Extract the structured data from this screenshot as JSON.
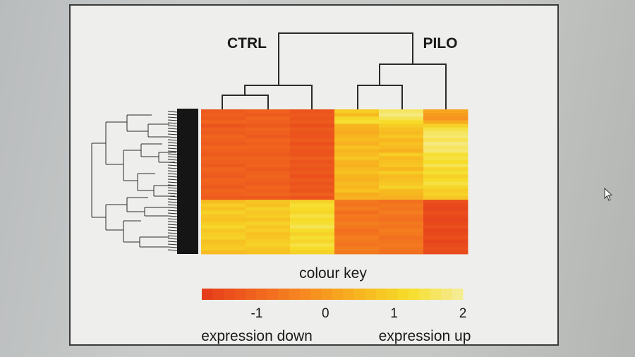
{
  "chart_data": {
    "type": "heatmap",
    "column_groups": [
      {
        "label": "CTRL",
        "columns": 3
      },
      {
        "label": "PILO",
        "columns": 3
      }
    ],
    "columns": 6,
    "rows": 40,
    "color_scale": [
      "#e43a1a",
      "#f0621e",
      "#f68a20",
      "#f7b51f",
      "#f6de2a",
      "#f5ed9c"
    ],
    "value_range": [
      -1.8,
      2
    ],
    "values": [
      [
        -1.2,
        -1.1,
        -1.3,
        0.9,
        1.6,
        0.2
      ],
      [
        -1.1,
        -1.2,
        -1.2,
        0.6,
        1.8,
        0.0
      ],
      [
        -1.2,
        -1.0,
        -1.3,
        1.1,
        1.5,
        -0.1
      ],
      [
        -1.0,
        -1.1,
        -1.2,
        1.3,
        1.2,
        0.3
      ],
      [
        -1.3,
        -1.2,
        -1.4,
        0.5,
        0.9,
        1.0
      ],
      [
        -1.1,
        -1.0,
        -1.2,
        0.4,
        0.7,
        1.4
      ],
      [
        -1.2,
        -1.1,
        -1.3,
        0.3,
        0.6,
        1.6
      ],
      [
        -1.0,
        -1.2,
        -1.3,
        0.5,
        0.8,
        1.7
      ],
      [
        -1.1,
        -1.0,
        -1.2,
        0.6,
        0.5,
        1.5
      ],
      [
        -1.2,
        -1.1,
        -1.4,
        0.4,
        0.7,
        1.8
      ],
      [
        -1.0,
        -1.0,
        -1.2,
        0.7,
        0.6,
        1.6
      ],
      [
        -1.1,
        -1.1,
        -1.3,
        0.5,
        0.4,
        1.7
      ],
      [
        -1.2,
        -1.2,
        -1.3,
        0.6,
        0.9,
        1.3
      ],
      [
        -1.0,
        -1.0,
        -1.1,
        0.8,
        0.6,
        1.4
      ],
      [
        -1.1,
        -1.1,
        -1.3,
        0.5,
        0.7,
        1.2
      ],
      [
        -1.2,
        -1.0,
        -1.2,
        0.4,
        0.8,
        1.5
      ],
      [
        -1.0,
        -1.2,
        -1.3,
        0.6,
        0.5,
        1.1
      ],
      [
        -1.1,
        -1.1,
        -1.2,
        0.7,
        0.9,
        1.3
      ],
      [
        -1.2,
        -1.0,
        -1.4,
        0.5,
        0.6,
        1.0
      ],
      [
        -1.0,
        -1.1,
        -1.2,
        0.4,
        0.7,
        1.2
      ],
      [
        -1.1,
        -1.2,
        -1.3,
        0.6,
        0.8,
        1.4
      ],
      [
        -1.2,
        -1.0,
        -1.2,
        0.5,
        1.0,
        1.1
      ],
      [
        -1.0,
        -1.1,
        -1.3,
        0.7,
        0.6,
        0.9
      ],
      [
        -1.1,
        -1.0,
        -1.1,
        0.3,
        0.5,
        1.0
      ],
      [
        -1.2,
        -1.2,
        -1.3,
        0.4,
        0.4,
        0.8
      ],
      [
        0.6,
        0.8,
        1.0,
        -0.6,
        -0.8,
        -1.4
      ],
      [
        0.9,
        0.7,
        1.3,
        -0.7,
        -0.6,
        -1.5
      ],
      [
        0.7,
        1.0,
        1.2,
        -0.5,
        -0.7,
        -1.6
      ],
      [
        1.0,
        0.8,
        1.1,
        -0.8,
        -0.5,
        -1.4
      ],
      [
        0.8,
        0.9,
        1.4,
        -0.6,
        -0.7,
        -1.5
      ],
      [
        0.7,
        0.7,
        1.2,
        -0.7,
        -0.8,
        -1.6
      ],
      [
        0.9,
        1.0,
        1.3,
        -0.5,
        -0.6,
        -1.5
      ],
      [
        1.1,
        0.8,
        1.5,
        -0.6,
        -0.7,
        -1.4
      ],
      [
        0.8,
        0.9,
        1.2,
        -0.8,
        -0.5,
        -1.6
      ],
      [
        0.9,
        0.7,
        1.0,
        -0.7,
        -0.6,
        -1.5
      ],
      [
        1.0,
        0.8,
        1.3,
        -0.5,
        -0.8,
        -1.4
      ],
      [
        0.7,
        0.9,
        1.1,
        -0.6,
        -0.7,
        -1.6
      ],
      [
        0.8,
        1.0,
        1.4,
        -0.7,
        -0.6,
        -1.5
      ],
      [
        0.9,
        0.8,
        1.2,
        -0.5,
        -0.7,
        -1.4
      ],
      [
        0.6,
        0.7,
        1.0,
        -0.6,
        -0.8,
        -1.5
      ]
    ],
    "legend": {
      "title": "colour key",
      "ticks": [
        -1,
        0,
        1,
        2
      ],
      "tick_labels": [
        "-1",
        "0",
        "1",
        "2"
      ],
      "low_label": "expression down",
      "high_label": "expression up"
    },
    "grid": false
  }
}
